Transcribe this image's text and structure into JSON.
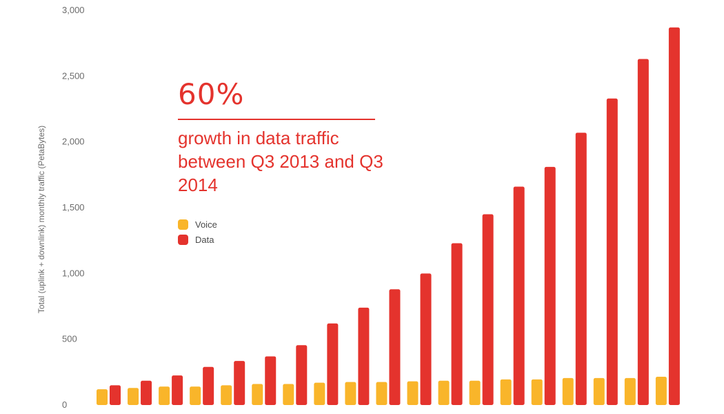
{
  "chart_data": {
    "type": "bar",
    "ylabel": "Total (uplink + downlink) monthly traffic (PetaBytes)",
    "ylim": [
      0,
      3000
    ],
    "yticks": [
      0,
      500,
      1000,
      1500,
      2000,
      2500,
      3000
    ],
    "ytick_labels": [
      "0",
      "500",
      "1,000",
      "1,500",
      "2,000",
      "2,500",
      "3,000"
    ],
    "categories": [
      "",
      "",
      "",
      "",
      "",
      "",
      "",
      "",
      "",
      "",
      "",
      "",
      "",
      "",
      "",
      "",
      "",
      "",
      ""
    ],
    "series": [
      {
        "name": "Voice",
        "color": "#f9b52a",
        "values": [
          120,
          130,
          140,
          140,
          150,
          160,
          160,
          170,
          175,
          175,
          180,
          185,
          185,
          195,
          195,
          205,
          205,
          205,
          215
        ]
      },
      {
        "name": "Data",
        "color": "#e4332d",
        "values": [
          150,
          185,
          225,
          290,
          335,
          370,
          455,
          620,
          740,
          880,
          1000,
          1230,
          1450,
          1660,
          1810,
          2070,
          2330,
          2630,
          2870
        ]
      }
    ],
    "grid": false,
    "legend_position": "upper-left inset",
    "annotation": {
      "value": "60%",
      "text": "growth in data traffic between Q3 2013 and Q3 2014"
    }
  }
}
